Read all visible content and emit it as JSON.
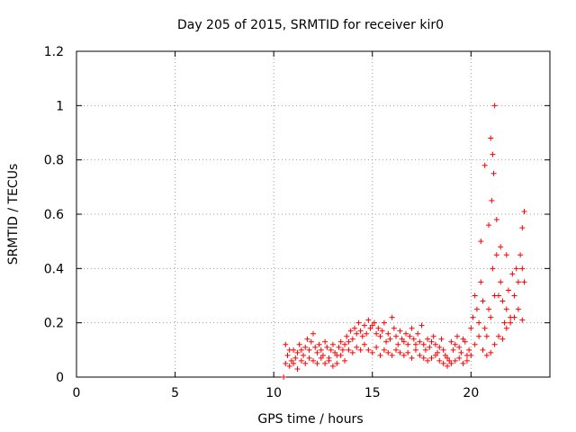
{
  "chart_data": {
    "type": "scatter",
    "title": "Day 205 of 2015, SRMTID for receiver kir0",
    "xlabel": "GPS time / hours",
    "ylabel": "SRMTID / TECUs",
    "xlim": [
      0,
      24
    ],
    "ylim": [
      0,
      1.2
    ],
    "xticks": [
      0,
      5,
      10,
      15,
      20
    ],
    "xtick_labels": [
      "0",
      "5",
      "10",
      "15",
      "20"
    ],
    "yticks": [
      0,
      0.2,
      0.4,
      0.6,
      0.8,
      1,
      1.2
    ],
    "ytick_labels": [
      "0",
      "0.2",
      "0.4",
      "0.6",
      "0.8",
      "1",
      "1.2"
    ],
    "grid": true,
    "marker": "+",
    "series": [
      {
        "name": "SRMTID kir0",
        "color": "#ff0000",
        "x": [
          10.5,
          10.6,
          10.7,
          10.8,
          10.9,
          11.0,
          11.1,
          11.2,
          11.3,
          11.4,
          11.5,
          11.6,
          11.7,
          11.8,
          11.9,
          12.0,
          12.1,
          12.2,
          12.3,
          12.4,
          12.5,
          12.6,
          12.7,
          12.8,
          12.9,
          13.0,
          13.1,
          13.2,
          13.3,
          13.4,
          13.5,
          13.6,
          13.7,
          13.8,
          13.9,
          14.0,
          14.1,
          14.2,
          14.3,
          14.4,
          14.5,
          14.6,
          14.7,
          14.8,
          14.9,
          15.0,
          15.1,
          15.2,
          15.3,
          15.4,
          15.5,
          15.6,
          15.7,
          15.8,
          15.9,
          16.0,
          16.1,
          16.2,
          16.3,
          16.4,
          16.5,
          16.6,
          16.7,
          16.8,
          16.9,
          17.0,
          17.1,
          17.2,
          17.3,
          17.4,
          17.5,
          17.6,
          17.7,
          17.8,
          17.9,
          18.0,
          18.1,
          18.2,
          18.3,
          18.4,
          18.5,
          18.6,
          18.7,
          18.8,
          18.9,
          19.0,
          19.1,
          19.2,
          19.3,
          19.4,
          19.5,
          19.6,
          19.7,
          19.8,
          19.9,
          20.0,
          20.1,
          20.2,
          20.3,
          20.4,
          20.5,
          20.6,
          20.7,
          20.8,
          20.9,
          21.0,
          21.1,
          21.2,
          21.3,
          21.4,
          21.5,
          21.6,
          21.7,
          21.8,
          21.9,
          22.0,
          22.1,
          22.2,
          22.3,
          22.4,
          22.5,
          22.6,
          22.7,
          10.6,
          10.8,
          11.0,
          11.2,
          11.4,
          11.6,
          11.8,
          12.0,
          12.2,
          12.4,
          12.6,
          12.8,
          13.0,
          13.2,
          13.4,
          13.6,
          13.8,
          14.0,
          14.2,
          14.4,
          14.6,
          14.8,
          15.0,
          15.2,
          15.4,
          15.6,
          15.8,
          16.0,
          16.2,
          16.4,
          16.6,
          16.8,
          17.0,
          17.2,
          17.4,
          17.6,
          17.8,
          18.0,
          18.2,
          18.4,
          18.6,
          18.8,
          19.0,
          19.2,
          19.4,
          19.6,
          19.8,
          20.0,
          20.2,
          20.4,
          20.6,
          20.8,
          21.0,
          21.2,
          21.4,
          21.6,
          21.8,
          22.0,
          22.2,
          22.4,
          22.6,
          20.5,
          20.7,
          20.9,
          21.0,
          21.05,
          21.1,
          21.15,
          21.2,
          21.3,
          21.5,
          21.8,
          22.6,
          22.7
        ],
        "y": [
          0.0,
          0.12,
          0.08,
          0.1,
          0.06,
          0.1,
          0.07,
          0.09,
          0.12,
          0.1,
          0.08,
          0.11,
          0.14,
          0.1,
          0.13,
          0.16,
          0.11,
          0.09,
          0.12,
          0.1,
          0.08,
          0.13,
          0.11,
          0.07,
          0.1,
          0.12,
          0.09,
          0.08,
          0.11,
          0.13,
          0.1,
          0.12,
          0.15,
          0.13,
          0.17,
          0.14,
          0.18,
          0.16,
          0.2,
          0.17,
          0.15,
          0.19,
          0.16,
          0.21,
          0.18,
          0.19,
          0.2,
          0.16,
          0.18,
          0.15,
          0.17,
          0.2,
          0.13,
          0.16,
          0.14,
          0.22,
          0.18,
          0.15,
          0.12,
          0.17,
          0.14,
          0.13,
          0.16,
          0.12,
          0.15,
          0.18,
          0.14,
          0.12,
          0.16,
          0.13,
          0.19,
          0.12,
          0.1,
          0.14,
          0.11,
          0.13,
          0.15,
          0.12,
          0.09,
          0.11,
          0.14,
          0.1,
          0.08,
          0.07,
          0.06,
          0.13,
          0.1,
          0.12,
          0.15,
          0.11,
          0.09,
          0.14,
          0.13,
          0.08,
          0.1,
          0.18,
          0.22,
          0.3,
          0.25,
          0.2,
          0.35,
          0.28,
          0.18,
          0.15,
          0.25,
          0.22,
          0.4,
          0.3,
          0.45,
          0.3,
          0.35,
          0.28,
          0.2,
          0.25,
          0.32,
          0.22,
          0.38,
          0.3,
          0.4,
          0.35,
          0.45,
          0.4,
          0.35,
          0.05,
          0.04,
          0.05,
          0.03,
          0.06,
          0.05,
          0.07,
          0.06,
          0.05,
          0.07,
          0.05,
          0.06,
          0.04,
          0.05,
          0.08,
          0.06,
          0.1,
          0.09,
          0.11,
          0.1,
          0.12,
          0.1,
          0.09,
          0.11,
          0.08,
          0.1,
          0.09,
          0.08,
          0.1,
          0.09,
          0.08,
          0.09,
          0.07,
          0.1,
          0.08,
          0.07,
          0.06,
          0.07,
          0.08,
          0.06,
          0.05,
          0.04,
          0.05,
          0.06,
          0.07,
          0.05,
          0.06,
          0.08,
          0.12,
          0.15,
          0.1,
          0.08,
          0.09,
          0.12,
          0.15,
          0.14,
          0.18,
          0.2,
          0.22,
          0.25,
          0.21,
          0.5,
          0.78,
          0.56,
          0.88,
          0.65,
          0.82,
          0.75,
          1.0,
          0.58,
          0.48,
          0.45,
          0.55,
          0.61
        ]
      }
    ]
  }
}
